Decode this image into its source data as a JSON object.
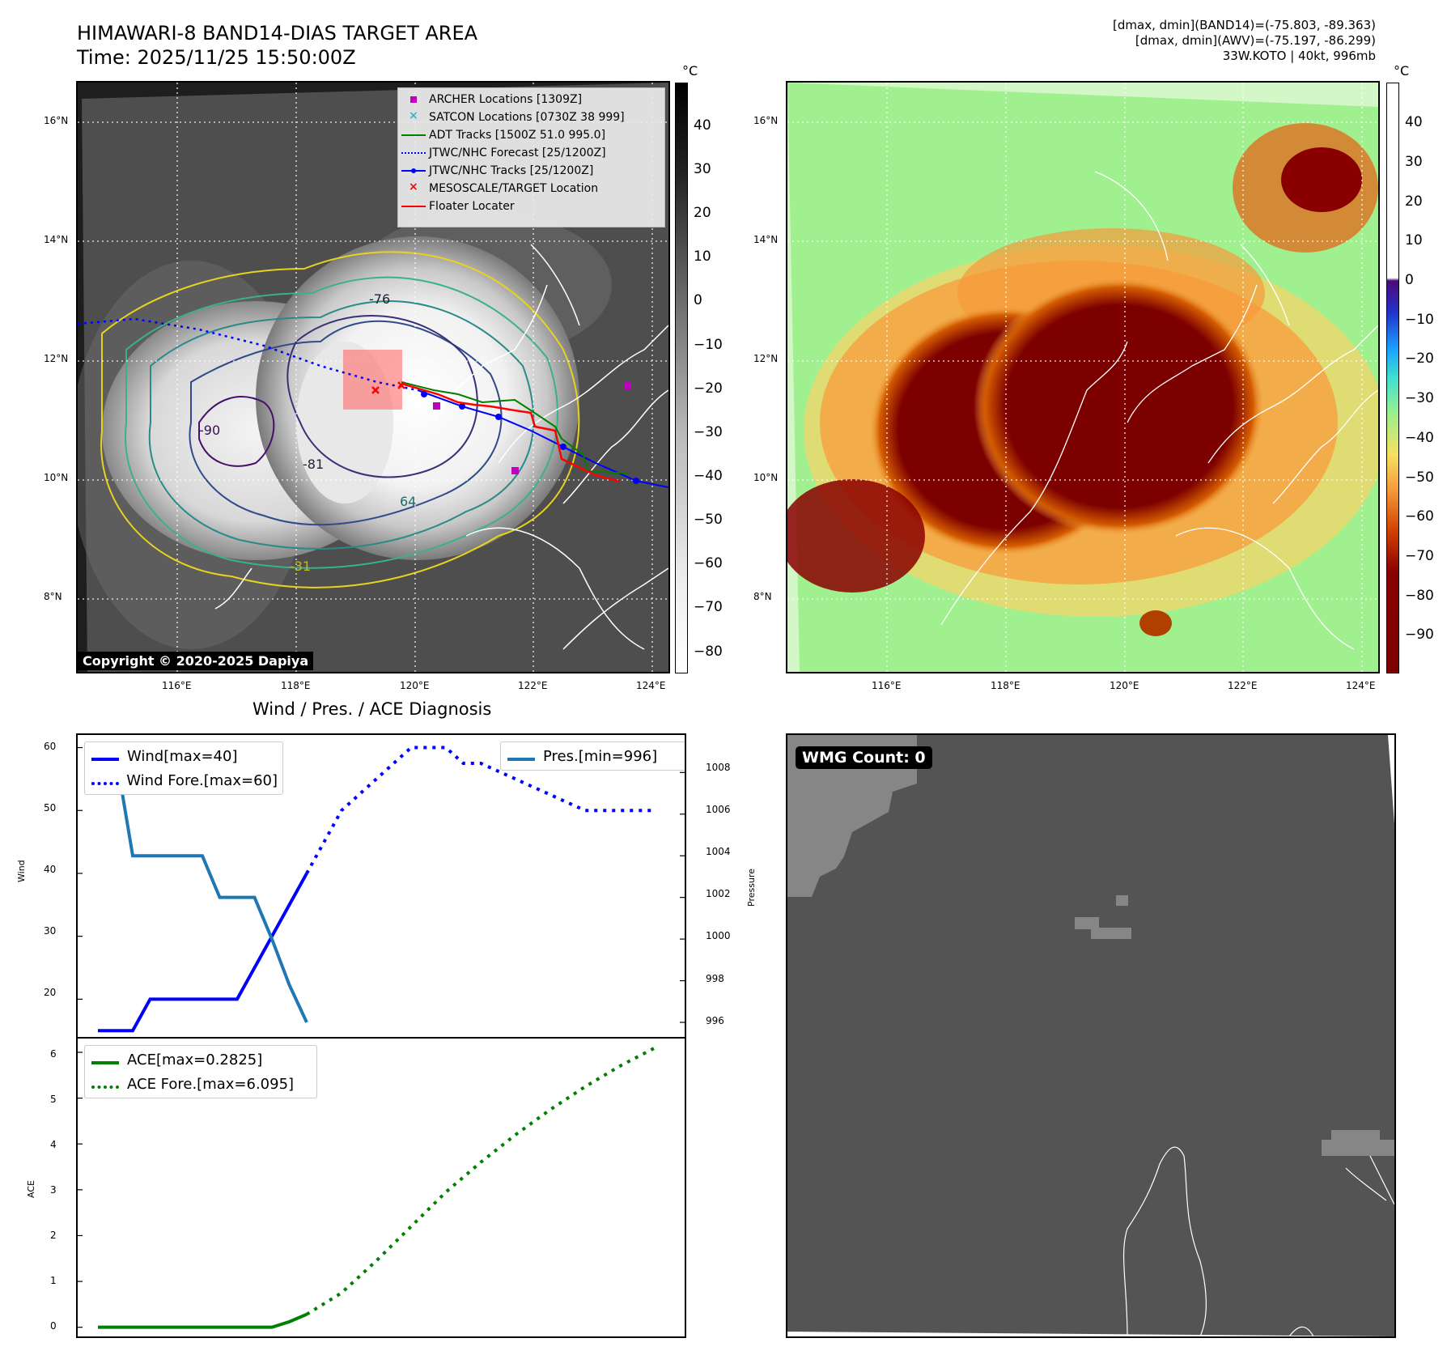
{
  "header": {
    "title": "HIMAWARI-8 BAND14-DIAS TARGET AREA",
    "time": "Time: 2025/11/25 15:50:00Z",
    "info_line1": "[dmax, dmin](BAND14)=(-75.803, -89.363)",
    "info_line2": "[dmax, dmin](AWV)=(-75.197, -86.299)",
    "info_line3": "33W.KOTO | 40kt, 996mb"
  },
  "map_left": {
    "lat_ticks": [
      "16°N",
      "14°N",
      "12°N",
      "10°N",
      "8°N"
    ],
    "lon_ticks": [
      "116°E",
      "118°E",
      "120°E",
      "122°E",
      "124°E"
    ],
    "contour_labels": [
      "-76",
      "-81",
      "-90",
      "64",
      "-31"
    ],
    "copyright": "Copyright © 2020-2025 Dapiya",
    "legend": [
      {
        "label": "ARCHER Locations [1309Z]",
        "color": "#c000c0",
        "marker": "square"
      },
      {
        "label": "SATCON Locations [0730Z 38 999]",
        "color": "#17becf",
        "marker": "x"
      },
      {
        "label": "ADT Tracks [1500Z 51.0 995.0]",
        "color": "#008000",
        "marker": "line"
      },
      {
        "label": "JTWC/NHC Forecast [25/1200Z]",
        "color": "#0000ff",
        "marker": "dotted"
      },
      {
        "label": "JTWC/NHC Tracks [25/1200Z]",
        "color": "#0000ff",
        "marker": "line-dot"
      },
      {
        "label": "MESOSCALE/TARGET Location",
        "color": "#ff0000",
        "marker": "x"
      },
      {
        "label": "Floater Locater",
        "color": "#ff0000",
        "marker": "line"
      }
    ],
    "colorbar_unit": "°C",
    "colorbar_ticks": [
      "40",
      "30",
      "20",
      "10",
      "0",
      "−10",
      "−20",
      "−30",
      "−40",
      "−50",
      "−60",
      "−70",
      "−80"
    ]
  },
  "map_right": {
    "lat_ticks": [
      "16°N",
      "14°N",
      "12°N",
      "10°N",
      "8°N"
    ],
    "lon_ticks": [
      "116°E",
      "118°E",
      "120°E",
      "122°E",
      "124°E"
    ],
    "colorbar_unit": "°C",
    "colorbar_ticks": [
      "40",
      "30",
      "20",
      "10",
      "0",
      "−10",
      "−20",
      "−30",
      "−40",
      "−50",
      "−60",
      "−70",
      "−80",
      "−90"
    ]
  },
  "wmg_panel": {
    "label": "WMG Count: 0"
  },
  "chart_data": [
    {
      "type": "line",
      "title": "Wind / Pres. / ACE Diagnosis",
      "xlabel": "",
      "ylabel": "Wind",
      "ylabel_right": "Pressure",
      "ylim": [
        14,
        62
      ],
      "ylim_right": [
        995.3,
        1009.8
      ],
      "y_ticks": [
        "60",
        "50",
        "40",
        "30",
        "20"
      ],
      "y_ticks_right": [
        "1008",
        "1006",
        "1004",
        "1002",
        "1000",
        "998",
        "996"
      ],
      "x": [
        0,
        1,
        2,
        3,
        4,
        5,
        6,
        7,
        8,
        9,
        10,
        11,
        12,
        13,
        14,
        15,
        16
      ],
      "series": [
        {
          "name": "Wind[max=40]",
          "style": "solid",
          "color": "#0000ff",
          "axis": "left",
          "x": [
            0,
            1,
            1.5,
            3,
            3.5,
            4,
            5,
            6
          ],
          "values": [
            15,
            15,
            20,
            20,
            20,
            20,
            30,
            40
          ]
        },
        {
          "name": "Wind Fore.[max=60]",
          "style": "dotted",
          "color": "#0000ff",
          "axis": "left",
          "x": [
            6,
            7,
            8,
            9,
            9.5,
            10,
            10.5,
            11,
            12,
            13,
            14,
            15,
            16
          ],
          "values": [
            40,
            50,
            55,
            60,
            60,
            60,
            57.5,
            57.5,
            55,
            52.5,
            50,
            50,
            50
          ]
        },
        {
          "name": "Pres.[min=996]",
          "style": "solid",
          "color": "#1f77b4",
          "axis": "right",
          "x": [
            0,
            0.5,
            1,
            2,
            2.5,
            3,
            3.5,
            4,
            4.5,
            5,
            5.5,
            6
          ],
          "values": [
            1009,
            1009,
            1004,
            1004,
            1004,
            1004,
            1002,
            1002,
            1002,
            1000,
            997.8,
            996
          ]
        }
      ],
      "legend": [
        "Wind[max=40]",
        "Wind Fore.[max=60]",
        "Pres.[min=996]"
      ]
    },
    {
      "type": "line",
      "xlabel": "",
      "ylabel": "ACE",
      "ylim": [
        -0.2,
        6.3
      ],
      "y_ticks": [
        "6",
        "5",
        "4",
        "3",
        "2",
        "1",
        "0"
      ],
      "series": [
        {
          "name": "ACE[max=0.2825]",
          "style": "solid",
          "color": "#008000",
          "x": [
            0,
            1,
            2,
            3,
            4,
            5,
            5.5,
            6
          ],
          "values": [
            0,
            0,
            0,
            0,
            0,
            0,
            0.12,
            0.2825
          ]
        },
        {
          "name": "ACE Fore.[max=6.095]",
          "style": "dotted",
          "color": "#008000",
          "x": [
            6,
            7,
            8,
            9,
            10,
            11,
            12,
            13,
            14,
            15,
            16
          ],
          "values": [
            0.2825,
            0.75,
            1.45,
            2.2,
            2.95,
            3.6,
            4.2,
            4.75,
            5.25,
            5.7,
            6.095
          ]
        }
      ],
      "legend": [
        "ACE[max=0.2825]",
        "ACE Fore.[max=6.095]"
      ]
    }
  ]
}
